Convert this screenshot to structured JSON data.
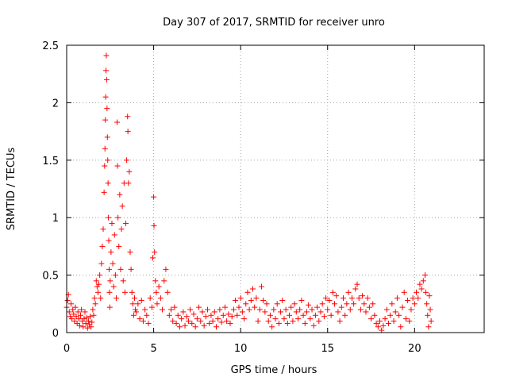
{
  "chart_data": {
    "type": "scatter",
    "title": "Day 307 of 2017, SRMTID for receiver unro",
    "xlabel": "GPS time / hours",
    "ylabel": "SRMTID / TECUs",
    "xlim": [
      0,
      24
    ],
    "ylim": [
      0,
      2.5
    ],
    "xticks": [
      0,
      5,
      10,
      15,
      20
    ],
    "xtick_labels": [
      "0",
      "5",
      "10",
      "15",
      "20"
    ],
    "yticks": [
      0,
      0.5,
      1,
      1.5,
      2,
      2.5
    ],
    "ytick_labels": [
      "0",
      "0.5",
      "1",
      "1.5",
      "2",
      "2.5"
    ],
    "grid": true,
    "marker": "+",
    "series": [
      {
        "name": "SRMTID",
        "color": "#ff0000",
        "points": [
          [
            0.0,
            0.22
          ],
          [
            0.05,
            0.28
          ],
          [
            0.1,
            0.33
          ],
          [
            0.15,
            0.18
          ],
          [
            0.2,
            0.14
          ],
          [
            0.25,
            0.25
          ],
          [
            0.3,
            0.12
          ],
          [
            0.35,
            0.2
          ],
          [
            0.4,
            0.16
          ],
          [
            0.45,
            0.1
          ],
          [
            0.5,
            0.22
          ],
          [
            0.55,
            0.14
          ],
          [
            0.6,
            0.08
          ],
          [
            0.65,
            0.18
          ],
          [
            0.7,
            0.12
          ],
          [
            0.75,
            0.06
          ],
          [
            0.8,
            0.15
          ],
          [
            0.85,
            0.2
          ],
          [
            0.9,
            0.1
          ],
          [
            0.95,
            0.05
          ],
          [
            1.0,
            0.12
          ],
          [
            1.05,
            0.18
          ],
          [
            1.1,
            0.08
          ],
          [
            1.15,
            0.13
          ],
          [
            1.2,
            0.04
          ],
          [
            1.25,
            0.1
          ],
          [
            1.3,
            0.07
          ],
          [
            1.35,
            0.14
          ],
          [
            1.4,
            0.05
          ],
          [
            1.45,
            0.09
          ],
          [
            1.5,
            0.2
          ],
          [
            1.55,
            0.15
          ],
          [
            1.6,
            0.3
          ],
          [
            1.65,
            0.25
          ],
          [
            1.7,
            0.45
          ],
          [
            1.75,
            0.4
          ],
          [
            1.8,
            0.35
          ],
          [
            1.85,
            0.42
          ],
          [
            1.9,
            0.5
          ],
          [
            1.95,
            0.3
          ],
          [
            2.0,
            0.6
          ],
          [
            2.05,
            0.75
          ],
          [
            2.1,
            0.9
          ],
          [
            2.15,
            1.22
          ],
          [
            2.18,
            1.45
          ],
          [
            2.2,
            1.6
          ],
          [
            2.22,
            1.85
          ],
          [
            2.24,
            2.05
          ],
          [
            2.26,
            2.28
          ],
          [
            2.28,
            2.41
          ],
          [
            2.3,
            2.2
          ],
          [
            2.32,
            1.95
          ],
          [
            2.34,
            1.7
          ],
          [
            2.36,
            1.5
          ],
          [
            2.38,
            1.3
          ],
          [
            2.4,
            1.0
          ],
          [
            2.42,
            0.8
          ],
          [
            2.44,
            0.55
          ],
          [
            2.46,
            0.35
          ],
          [
            2.48,
            0.22
          ],
          [
            2.5,
            0.45
          ],
          [
            2.55,
            0.7
          ],
          [
            2.6,
            0.95
          ],
          [
            2.65,
            0.6
          ],
          [
            2.7,
            0.4
          ],
          [
            2.75,
            0.85
          ],
          [
            2.8,
            0.5
          ],
          [
            2.85,
            0.3
          ],
          [
            2.9,
            1.83
          ],
          [
            2.92,
            1.45
          ],
          [
            2.95,
            1.0
          ],
          [
            3.0,
            0.75
          ],
          [
            3.05,
            1.2
          ],
          [
            3.1,
            0.55
          ],
          [
            3.15,
            0.9
          ],
          [
            3.2,
            1.1
          ],
          [
            3.25,
            0.45
          ],
          [
            3.3,
            1.3
          ],
          [
            3.35,
            0.35
          ],
          [
            3.4,
            0.95
          ],
          [
            3.45,
            1.5
          ],
          [
            3.5,
            1.88
          ],
          [
            3.52,
            1.75
          ],
          [
            3.55,
            1.3
          ],
          [
            3.6,
            1.4
          ],
          [
            3.65,
            0.7
          ],
          [
            3.7,
            0.55
          ],
          [
            3.75,
            0.35
          ],
          [
            3.8,
            0.25
          ],
          [
            3.85,
            0.15
          ],
          [
            3.9,
            0.3
          ],
          [
            3.95,
            0.2
          ],
          [
            4.0,
            0.18
          ],
          [
            4.1,
            0.25
          ],
          [
            4.2,
            0.12
          ],
          [
            4.3,
            0.28
          ],
          [
            4.4,
            0.1
          ],
          [
            4.5,
            0.2
          ],
          [
            4.6,
            0.15
          ],
          [
            4.7,
            0.08
          ],
          [
            4.8,
            0.3
          ],
          [
            4.9,
            0.22
          ],
          [
            4.95,
            0.65
          ],
          [
            5.0,
            1.18
          ],
          [
            5.02,
            0.93
          ],
          [
            5.05,
            0.7
          ],
          [
            5.1,
            0.45
          ],
          [
            5.15,
            0.35
          ],
          [
            5.2,
            0.25
          ],
          [
            5.3,
            0.4
          ],
          [
            5.4,
            0.3
          ],
          [
            5.5,
            0.2
          ],
          [
            5.6,
            0.45
          ],
          [
            5.7,
            0.55
          ],
          [
            5.8,
            0.35
          ],
          [
            5.9,
            0.15
          ],
          [
            6.0,
            0.2
          ],
          [
            6.1,
            0.1
          ],
          [
            6.2,
            0.22
          ],
          [
            6.3,
            0.08
          ],
          [
            6.4,
            0.15
          ],
          [
            6.5,
            0.05
          ],
          [
            6.6,
            0.12
          ],
          [
            6.7,
            0.18
          ],
          [
            6.8,
            0.06
          ],
          [
            6.9,
            0.14
          ],
          [
            7.0,
            0.1
          ],
          [
            7.1,
            0.2
          ],
          [
            7.2,
            0.08
          ],
          [
            7.3,
            0.16
          ],
          [
            7.4,
            0.05
          ],
          [
            7.5,
            0.12
          ],
          [
            7.6,
            0.22
          ],
          [
            7.7,
            0.1
          ],
          [
            7.8,
            0.18
          ],
          [
            7.9,
            0.06
          ],
          [
            8.0,
            0.14
          ],
          [
            8.1,
            0.2
          ],
          [
            8.2,
            0.08
          ],
          [
            8.3,
            0.15
          ],
          [
            8.4,
            0.1
          ],
          [
            8.5,
            0.18
          ],
          [
            8.6,
            0.05
          ],
          [
            8.7,
            0.12
          ],
          [
            8.8,
            0.2
          ],
          [
            8.9,
            0.09
          ],
          [
            9.0,
            0.15
          ],
          [
            9.1,
            0.22
          ],
          [
            9.2,
            0.1
          ],
          [
            9.3,
            0.16
          ],
          [
            9.4,
            0.08
          ],
          [
            9.5,
            0.14
          ],
          [
            9.6,
            0.2
          ],
          [
            9.7,
            0.28
          ],
          [
            9.8,
            0.15
          ],
          [
            9.9,
            0.22
          ],
          [
            10.0,
            0.3
          ],
          [
            10.1,
            0.18
          ],
          [
            10.2,
            0.12
          ],
          [
            10.3,
            0.25
          ],
          [
            10.4,
            0.35
          ],
          [
            10.5,
            0.2
          ],
          [
            10.6,
            0.28
          ],
          [
            10.7,
            0.38
          ],
          [
            10.8,
            0.22
          ],
          [
            10.9,
            0.3
          ],
          [
            11.0,
            0.1
          ],
          [
            11.1,
            0.2
          ],
          [
            11.2,
            0.4
          ],
          [
            11.3,
            0.28
          ],
          [
            11.4,
            0.18
          ],
          [
            11.5,
            0.25
          ],
          [
            11.6,
            0.1
          ],
          [
            11.7,
            0.15
          ],
          [
            11.8,
            0.05
          ],
          [
            11.9,
            0.2
          ],
          [
            12.0,
            0.12
          ],
          [
            12.1,
            0.25
          ],
          [
            12.2,
            0.08
          ],
          [
            12.3,
            0.18
          ],
          [
            12.4,
            0.28
          ],
          [
            12.5,
            0.12
          ],
          [
            12.6,
            0.2
          ],
          [
            12.7,
            0.08
          ],
          [
            12.8,
            0.15
          ],
          [
            12.9,
            0.22
          ],
          [
            13.0,
            0.1
          ],
          [
            13.1,
            0.25
          ],
          [
            13.2,
            0.18
          ],
          [
            13.3,
            0.12
          ],
          [
            13.4,
            0.2
          ],
          [
            13.5,
            0.28
          ],
          [
            13.6,
            0.15
          ],
          [
            13.7,
            0.08
          ],
          [
            13.8,
            0.18
          ],
          [
            13.9,
            0.24
          ],
          [
            14.0,
            0.12
          ],
          [
            14.1,
            0.2
          ],
          [
            14.2,
            0.06
          ],
          [
            14.3,
            0.15
          ],
          [
            14.4,
            0.22
          ],
          [
            14.5,
            0.1
          ],
          [
            14.6,
            0.18
          ],
          [
            14.7,
            0.25
          ],
          [
            14.8,
            0.14
          ],
          [
            14.9,
            0.3
          ],
          [
            15.0,
            0.2
          ],
          [
            15.1,
            0.28
          ],
          [
            15.2,
            0.15
          ],
          [
            15.3,
            0.35
          ],
          [
            15.4,
            0.25
          ],
          [
            15.5,
            0.32
          ],
          [
            15.6,
            0.18
          ],
          [
            15.7,
            0.1
          ],
          [
            15.8,
            0.22
          ],
          [
            15.9,
            0.3
          ],
          [
            16.0,
            0.15
          ],
          [
            16.1,
            0.25
          ],
          [
            16.2,
            0.35
          ],
          [
            16.3,
            0.2
          ],
          [
            16.4,
            0.3
          ],
          [
            16.5,
            0.25
          ],
          [
            16.6,
            0.38
          ],
          [
            16.7,
            0.42
          ],
          [
            16.8,
            0.3
          ],
          [
            16.9,
            0.2
          ],
          [
            17.0,
            0.32
          ],
          [
            17.1,
            0.25
          ],
          [
            17.2,
            0.18
          ],
          [
            17.3,
            0.3
          ],
          [
            17.4,
            0.22
          ],
          [
            17.5,
            0.12
          ],
          [
            17.6,
            0.25
          ],
          [
            17.7,
            0.15
          ],
          [
            17.8,
            0.08
          ],
          [
            17.9,
            0.05
          ],
          [
            18.0,
            0.1
          ],
          [
            18.1,
            0.02
          ],
          [
            18.2,
            0.06
          ],
          [
            18.3,
            0.12
          ],
          [
            18.4,
            0.2
          ],
          [
            18.5,
            0.08
          ],
          [
            18.6,
            0.15
          ],
          [
            18.7,
            0.25
          ],
          [
            18.8,
            0.1
          ],
          [
            18.9,
            0.18
          ],
          [
            19.0,
            0.3
          ],
          [
            19.1,
            0.15
          ],
          [
            19.2,
            0.05
          ],
          [
            19.3,
            0.22
          ],
          [
            19.4,
            0.35
          ],
          [
            19.5,
            0.12
          ],
          [
            19.6,
            0.28
          ],
          [
            19.7,
            0.1
          ],
          [
            19.8,
            0.2
          ],
          [
            19.9,
            0.3
          ],
          [
            20.0,
            0.25
          ],
          [
            20.1,
            0.35
          ],
          [
            20.2,
            0.3
          ],
          [
            20.3,
            0.42
          ],
          [
            20.4,
            0.38
          ],
          [
            20.5,
            0.45
          ],
          [
            20.6,
            0.5
          ],
          [
            20.65,
            0.35
          ],
          [
            20.7,
            0.25
          ],
          [
            20.75,
            0.15
          ],
          [
            20.8,
            0.05
          ],
          [
            20.85,
            0.32
          ],
          [
            20.9,
            0.2
          ],
          [
            20.95,
            0.1
          ]
        ]
      }
    ]
  }
}
